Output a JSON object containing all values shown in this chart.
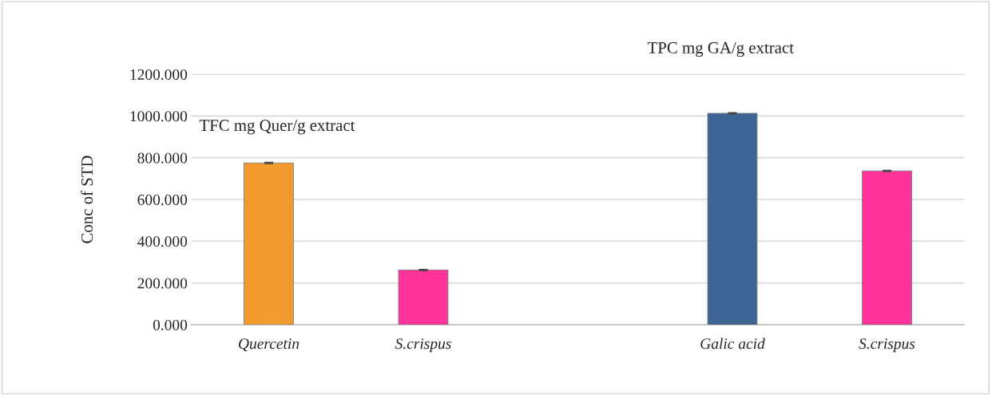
{
  "chart_data": {
    "type": "bar",
    "ylabel": "Conc of STD",
    "categories": [
      "Quercetin",
      "S.crispus",
      null,
      "Galic acid",
      "S.crispus"
    ],
    "values": [
      775,
      262,
      null,
      1013,
      737
    ],
    "errors": [
      3,
      3,
      null,
      3,
      3
    ],
    "colors": [
      "#f39a2e",
      "#ff3399",
      "#ffffff",
      "#3d6694",
      "#ff3399"
    ],
    "ylim": [
      0,
      1200
    ],
    "yticks": [
      {
        "value": 0,
        "label": "0.000"
      },
      {
        "value": 200,
        "label": "200.000"
      },
      {
        "value": 400,
        "label": "400.000"
      },
      {
        "value": 600,
        "label": "600.000"
      },
      {
        "value": 800,
        "label": "800.000"
      },
      {
        "value": 1000,
        "label": "1000.000"
      },
      {
        "value": 1200,
        "label": "1200.000"
      }
    ],
    "grid": "y",
    "annotations": [
      "TFC mg Quer/g extract",
      "TPC mg GA/g extract"
    ]
  }
}
